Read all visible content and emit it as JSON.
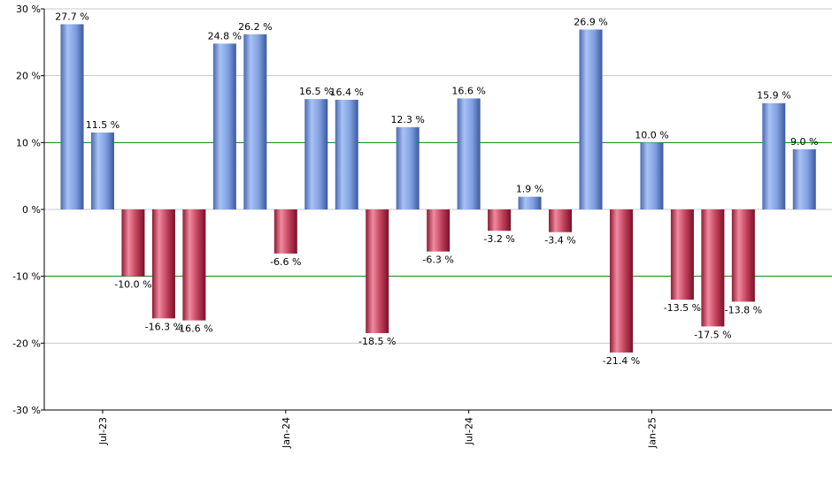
{
  "chart_data": {
    "type": "bar",
    "title": "",
    "xlabel": "",
    "ylabel": "",
    "ylim": [
      -30,
      30
    ],
    "y_ticks": [
      30,
      20,
      10,
      0,
      -10,
      -20,
      -30
    ],
    "y_tick_labels": [
      "30 %",
      "20 %",
      "10 %",
      "0 %",
      "-10 %",
      "-20 %",
      "-30 %"
    ],
    "reference_lines": [
      10,
      -10
    ],
    "x_tick_labels": [
      {
        "label": "Jul-23",
        "index": 1
      },
      {
        "label": "Jan-24",
        "index": 7
      },
      {
        "label": "Jul-24",
        "index": 13
      },
      {
        "label": "Jan-25",
        "index": 19
      }
    ],
    "values": [
      27.7,
      11.5,
      -10.0,
      -16.3,
      -16.6,
      24.8,
      26.2,
      -6.6,
      16.5,
      16.4,
      -18.5,
      12.3,
      -6.3,
      16.6,
      -3.2,
      1.9,
      -3.4,
      26.9,
      -21.4,
      10.0,
      -13.5,
      -17.5,
      -13.8,
      15.9,
      9.0
    ],
    "value_labels": [
      "27.7 %",
      "11.5 %",
      "-10.0 %",
      "-16.3 %",
      "-16.6 %",
      "24.8 %",
      "26.2 %",
      "-6.6 %",
      "16.5 %",
      "16.4 %",
      "-18.5 %",
      "12.3 %",
      "-6.3 %",
      "16.6 %",
      "-3.2 %",
      "1.9 %",
      "-3.4 %",
      "26.9 %",
      "-21.4 %",
      "10.0 %",
      "-13.5 %",
      "-17.5 %",
      "-13.8 %",
      "15.9 %",
      "9.0 %"
    ],
    "colors": {
      "positive": "#7f9fe0",
      "negative": "#c0405a",
      "reference_line": "#008000",
      "grid": "#c8c8c8",
      "axis": "#000000"
    }
  }
}
